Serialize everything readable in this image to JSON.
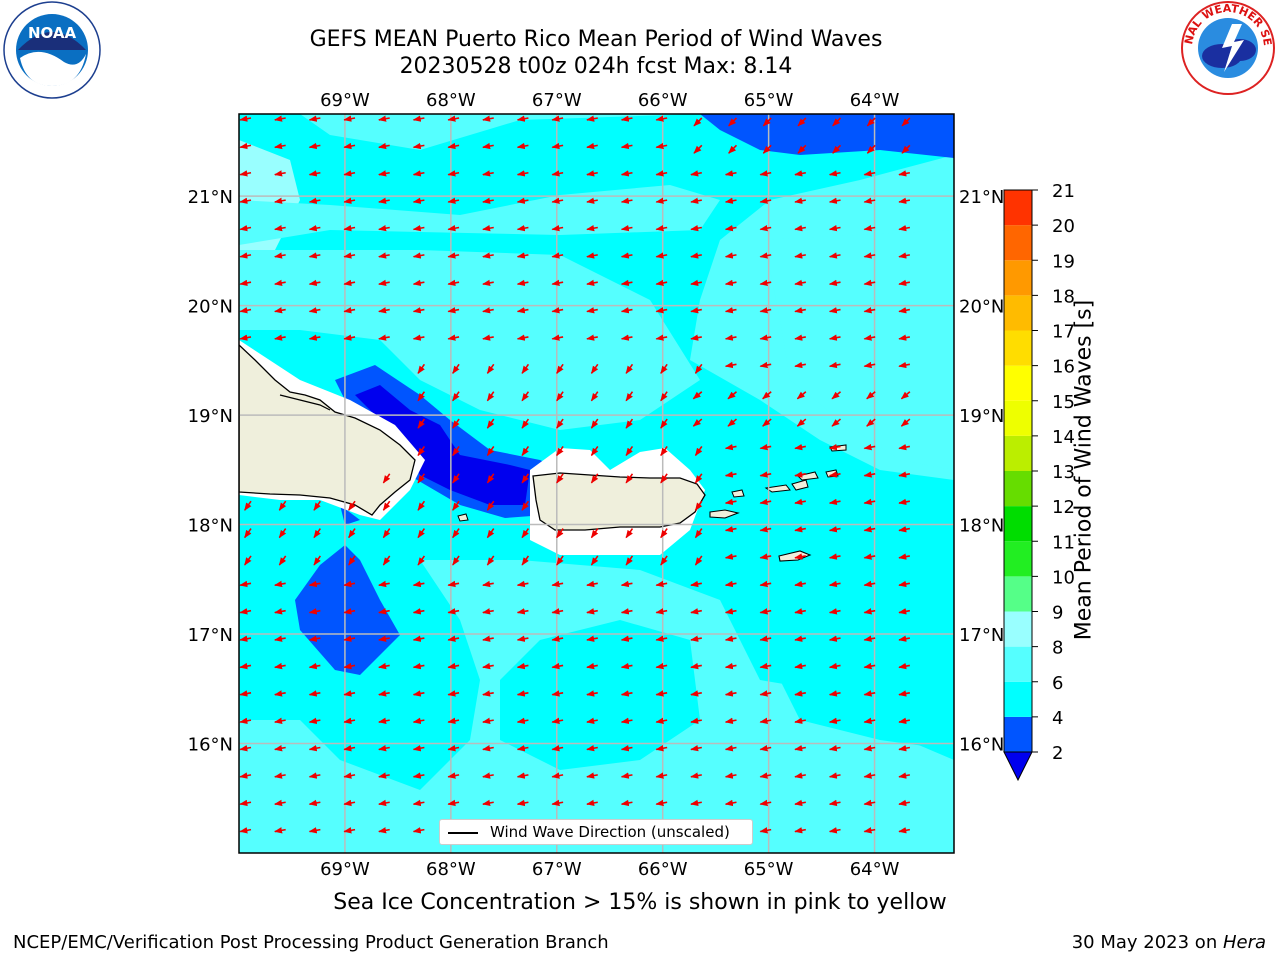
{
  "title": {
    "line1": "GEFS MEAN Puerto Rico Mean Period of Wind Waves",
    "line2": "20230528 t00z 024h fcst   Max: 8.14"
  },
  "logos": {
    "left": "noaa-logo",
    "right": "nws-logo",
    "left_text": "NOAA",
    "right_text": "NATIONAL WEATHER SERVICE"
  },
  "axes": {
    "lon_labels": [
      "69°W",
      "68°W",
      "67°W",
      "66°W",
      "65°W",
      "64°W"
    ],
    "lon_values": [
      -69,
      -68,
      -67,
      -66,
      -65,
      -64
    ],
    "lat_labels": [
      "21°N",
      "20°N",
      "19°N",
      "18°N",
      "17°N",
      "16°N"
    ],
    "lat_values": [
      21,
      20,
      19,
      18,
      17,
      16
    ],
    "lon_range": [
      -70,
      -63.25
    ],
    "lat_range": [
      15.0,
      21.75
    ]
  },
  "legend": {
    "label": "Wind Wave Direction (unscaled)"
  },
  "colorbar": {
    "title": "Mean Period of Wind Waves [s]",
    "ticks": [
      "2",
      "4",
      "6",
      "8",
      "9",
      "10",
      "11",
      "12",
      "13",
      "14",
      "15",
      "16",
      "17",
      "18",
      "19",
      "20",
      "21"
    ],
    "colors": [
      "#0055ff",
      "#00ffff",
      "#55ffff",
      "#99ffff",
      "#55ff88",
      "#22ee22",
      "#00dd00",
      "#66dd00",
      "#bbee00",
      "#eeff00",
      "#ffff00",
      "#ffdd00",
      "#ffbb00",
      "#ff9900",
      "#ff6600",
      "#ff3300",
      "#ff0000"
    ],
    "under_color": "#0000ee"
  },
  "colors": {
    "land": "#efefdc",
    "arrow": "#ee0000",
    "grid": "#bbbbbb"
  },
  "ice_note": "Sea Ice Concentration > 15% is shown in pink to yellow",
  "credits": {
    "left": "NCEP/EMC/Verification Post Processing Product Generation Branch",
    "right_date": "30 May 2023 on ",
    "right_host": "Hera"
  }
}
